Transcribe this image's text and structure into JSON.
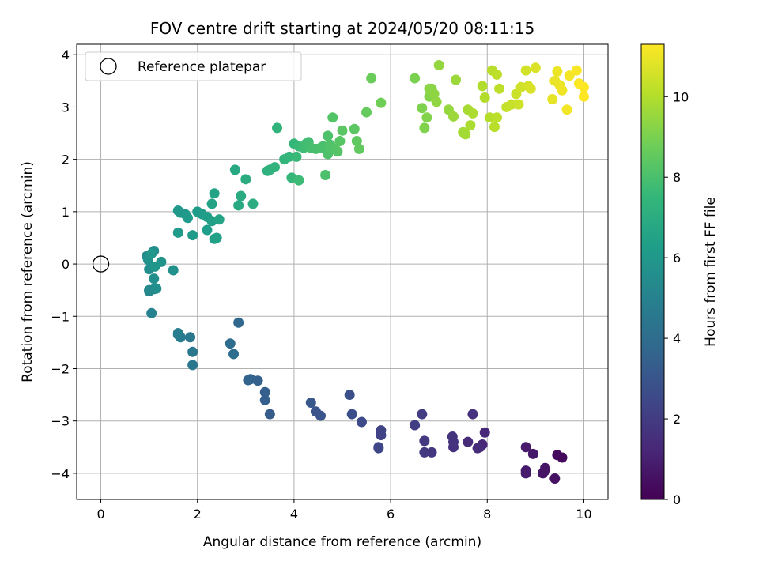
{
  "chart_data": {
    "type": "scatter",
    "title": "FOV centre drift starting at 2024/05/20 08:11:15",
    "xlabel": "Angular distance from reference (arcmin)",
    "ylabel": "Rotation from reference (arcmin)",
    "xlim": [
      -0.5,
      10.5
    ],
    "ylim": [
      -4.5,
      4.2
    ],
    "xticks": [
      0,
      2,
      4,
      6,
      8,
      10
    ],
    "yticks": [
      -4,
      -3,
      -2,
      -1,
      0,
      1,
      2,
      3,
      4
    ],
    "grid": true,
    "legend": {
      "placement": "top-left",
      "entries": [
        "Reference platepar"
      ]
    },
    "reference_point": {
      "x": 0,
      "y": 0,
      "label": "Reference platepar",
      "marker": "hollow-circle"
    },
    "colorbar": {
      "label": "Hours from first FF file",
      "colormap": "viridis",
      "range": [
        0,
        11.3
      ],
      "ticks": [
        0,
        2,
        4,
        6,
        8,
        10
      ]
    },
    "series": [
      {
        "x": [
          9.45,
          9.55,
          9.2,
          9.4,
          9.15,
          9.2,
          8.95,
          8.8,
          8.8,
          8.8,
          7.95,
          7.9,
          7.85,
          7.8,
          7.6,
          7.7,
          7.3,
          7.3,
          7.28,
          6.85,
          6.7,
          6.7,
          6.65,
          6.5,
          5.8,
          5.8,
          5.75,
          5.75,
          5.4,
          5.2,
          5.15,
          4.55,
          4.45,
          4.35,
          3.5,
          3.4,
          3.4,
          3.25,
          3.1,
          3.05,
          2.85,
          2.75,
          2.68,
          1.9,
          1.85,
          1.9,
          1.65,
          1.6,
          1.6,
          1.05,
          1.0,
          1.1,
          1.0,
          0.95,
          1.1,
          1.0,
          1.15,
          1.1,
          1.5,
          1.25,
          0.98,
          1.05,
          1.12
        ],
        "y": [
          -3.65,
          -3.7,
          -3.95,
          -4.1,
          -4.0,
          -3.9,
          -3.63,
          -3.5,
          -3.95,
          -4.0,
          -3.22,
          -3.45,
          -3.5,
          -3.52,
          -3.4,
          -2.87,
          -3.5,
          -3.4,
          -3.3,
          -3.6,
          -3.6,
          -3.38,
          -2.87,
          -3.08,
          -3.27,
          -3.18,
          -3.5,
          -3.52,
          -3.02,
          -2.87,
          -2.5,
          -2.9,
          -2.82,
          -2.65,
          -2.87,
          -2.6,
          -2.45,
          -2.23,
          -2.2,
          -2.22,
          -1.12,
          -1.72,
          -1.52,
          -1.68,
          -1.4,
          -1.93,
          -1.4,
          -1.35,
          -1.32,
          -0.94,
          -0.52,
          -0.48,
          -0.5,
          0.15,
          0.25,
          -0.1,
          -0.47,
          -0.28,
          -0.12,
          0.04,
          0.08,
          0.2,
          -0.05
        ],
        "hours": [
          0.3,
          0.3,
          0.5,
          0.5,
          0.6,
          0.6,
          0.7,
          0.8,
          0.8,
          0.8,
          1.3,
          1.3,
          1.3,
          1.4,
          1.4,
          1.6,
          1.6,
          1.7,
          1.7,
          1.8,
          1.9,
          1.9,
          2.0,
          2.1,
          2.3,
          2.3,
          2.4,
          2.4,
          2.6,
          2.7,
          2.8,
          3.0,
          3.0,
          3.1,
          3.3,
          3.4,
          3.4,
          3.5,
          3.6,
          3.6,
          3.8,
          4.0,
          4.0,
          4.5,
          4.5,
          4.5,
          4.7,
          4.7,
          4.8,
          5.0,
          5.2,
          5.2,
          5.3,
          5.5,
          5.5,
          5.6,
          5.6,
          5.6,
          5.7,
          5.8,
          5.8,
          5.9,
          5.9
        ]
      },
      {
        "x": [
          1.6,
          1.65,
          1.75,
          1.8,
          1.6,
          1.9,
          2.0,
          2.1,
          2.2,
          2.2,
          2.3,
          2.35,
          2.4,
          2.3,
          2.35,
          2.45,
          2.78,
          2.85,
          2.9,
          3.0,
          3.15,
          3.45,
          3.5,
          3.6,
          3.65,
          3.8,
          3.9,
          4.0,
          3.95,
          4.05,
          4.1,
          4.1,
          4.2,
          4.25,
          4.3,
          4.35,
          4.45,
          4.55,
          4.6,
          4.65,
          4.7,
          4.7,
          4.75,
          4.8,
          4.85,
          4.9,
          4.95,
          5.0,
          5.25,
          5.3,
          5.35,
          5.5,
          5.6,
          5.8,
          6.5,
          6.65,
          6.7,
          6.75,
          6.8,
          6.85,
          6.8,
          6.9,
          6.95,
          7.0,
          7.2,
          7.3,
          7.35,
          7.5,
          7.55,
          7.6,
          7.65,
          7.7
        ],
        "y": [
          1.02,
          0.98,
          0.95,
          0.88,
          0.6,
          0.55,
          1.0,
          0.95,
          0.65,
          0.9,
          0.82,
          0.48,
          0.5,
          1.15,
          1.35,
          0.85,
          1.8,
          1.12,
          1.3,
          1.62,
          1.15,
          1.78,
          1.8,
          1.85,
          2.6,
          2.0,
          2.05,
          2.3,
          1.65,
          2.05,
          2.25,
          1.6,
          2.22,
          2.3,
          2.33,
          2.22,
          2.2,
          2.22,
          2.25,
          1.7,
          2.1,
          2.45,
          2.28,
          2.8,
          2.2,
          2.15,
          2.35,
          2.55,
          2.58,
          2.35,
          2.2,
          2.9,
          3.55,
          3.08,
          3.55,
          2.98,
          2.6,
          2.8,
          3.2,
          3.35,
          3.35,
          3.25,
          3.1,
          3.8,
          2.95,
          2.82,
          3.52,
          2.52,
          2.48,
          2.95,
          2.65,
          2.88
        ],
        "hours": [
          6.0,
          6.0,
          6.05,
          6.1,
          6.1,
          6.15,
          6.2,
          6.25,
          6.3,
          6.35,
          6.4,
          6.4,
          6.45,
          6.5,
          6.55,
          6.6,
          6.8,
          6.85,
          6.9,
          6.95,
          7.0,
          7.2,
          7.25,
          7.3,
          7.35,
          7.4,
          7.45,
          7.5,
          7.55,
          7.6,
          7.65,
          7.7,
          7.75,
          7.8,
          7.85,
          7.9,
          7.95,
          8.0,
          8.0,
          8.05,
          8.1,
          8.1,
          8.15,
          8.2,
          8.2,
          8.25,
          8.3,
          8.35,
          8.4,
          8.45,
          8.5,
          8.6,
          8.7,
          8.8,
          9.0,
          9.05,
          9.1,
          9.15,
          9.2,
          9.25,
          9.3,
          9.35,
          9.4,
          9.45,
          9.5,
          9.6,
          9.6,
          9.7,
          9.75,
          9.8,
          9.85,
          9.9
        ]
      },
      {
        "x": [
          7.9,
          7.95,
          8.05,
          8.1,
          8.15,
          8.2,
          8.2,
          8.25,
          8.4,
          8.5,
          8.6,
          8.65,
          8.7,
          8.8,
          8.85,
          8.9,
          9.0,
          9.35,
          9.4,
          9.45,
          9.5,
          9.55,
          9.65,
          9.7,
          9.85,
          9.9,
          10.0,
          10.0
        ],
        "y": [
          3.4,
          3.18,
          2.8,
          3.7,
          2.62,
          2.8,
          3.62,
          3.35,
          3.0,
          3.05,
          3.25,
          3.05,
          3.38,
          3.7,
          3.4,
          3.35,
          3.75,
          3.15,
          3.5,
          3.68,
          3.42,
          3.32,
          2.95,
          3.6,
          3.7,
          3.45,
          3.2,
          3.38
        ],
        "hours": [
          10.0,
          10.0,
          10.05,
          10.1,
          10.1,
          10.15,
          10.2,
          10.2,
          10.3,
          10.35,
          10.4,
          10.45,
          10.5,
          10.55,
          10.6,
          10.65,
          10.7,
          10.9,
          10.95,
          11.0,
          11.0,
          11.05,
          11.1,
          11.15,
          11.2,
          11.25,
          11.3,
          11.3
        ]
      }
    ]
  }
}
